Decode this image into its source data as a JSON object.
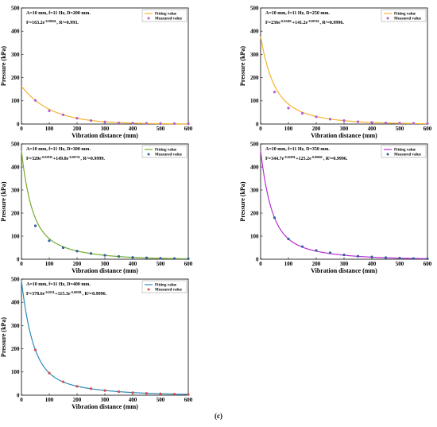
{
  "figure_label": "(c)",
  "chart_data": [
    {
      "type": "line",
      "xlabel": "Vibration distance (mm)",
      "ylabel": "Pressure (kPa)",
      "xlim": [
        0,
        600
      ],
      "ylim": [
        0,
        500
      ],
      "xticks": [
        0,
        100,
        200,
        300,
        400,
        500,
        600
      ],
      "yticks": [
        0,
        100,
        200,
        300,
        400,
        500
      ],
      "annotation_line1": "A=10 mm, f=11 Hz, D=200 mm.",
      "annotation_line2": "F=163.2e^-0.0094L, R²=0.993.",
      "legend": [
        "Fitting value",
        "Measured value"
      ],
      "legend_position": "top-right",
      "colors": {
        "fit": "#f0b530",
        "measured": "#b45ad6"
      },
      "fit": {
        "a": 163.2,
        "b": 0.0094,
        "c": 0,
        "d": 0
      },
      "series": [
        {
          "name": "Measured value",
          "x": [
            50,
            100,
            150,
            200,
            250,
            300,
            350,
            400,
            450,
            500,
            550,
            600
          ],
          "values": [
            102,
            57,
            40,
            25,
            15,
            9,
            5,
            4,
            3,
            2,
            2,
            1
          ]
        }
      ]
    },
    {
      "type": "line",
      "xlabel": "Vibration distance (mm)",
      "ylabel": "Pressure (kPa)",
      "xlim": [
        0,
        600
      ],
      "ylim": [
        0,
        500
      ],
      "xticks": [
        0,
        100,
        200,
        300,
        400,
        500,
        600
      ],
      "yticks": [
        0,
        100,
        200,
        300,
        400,
        500
      ],
      "annotation_line1": "A=10 mm, f=11 Hz, D=250 mm.",
      "annotation_line2": "F=236e^-0.0246L+141.2e^-0.0076L, R²=0.9996.",
      "legend": [
        "Fitting value",
        "Measured value"
      ],
      "legend_position": "top-right",
      "colors": {
        "fit": "#f0b530",
        "measured": "#b45ad6"
      },
      "fit": {
        "a": 236,
        "b": 0.0246,
        "c": 141.2,
        "d": 0.0076
      },
      "series": [
        {
          "name": "Measured value",
          "x": [
            50,
            100,
            150,
            200,
            250,
            300,
            350,
            400,
            450,
            500,
            550,
            600
          ],
          "values": [
            138,
            69,
            46,
            31,
            21,
            15,
            10,
            7,
            5,
            4,
            3,
            2
          ]
        }
      ]
    },
    {
      "type": "line",
      "xlabel": "Vibration distance (mm)",
      "ylabel": "Pressure (kPa)",
      "xlim": [
        0,
        600
      ],
      "ylim": [
        0,
        500
      ],
      "xticks": [
        0,
        100,
        200,
        300,
        400,
        500,
        600
      ],
      "yticks": [
        0,
        100,
        200,
        300,
        400,
        500
      ],
      "annotation_line1": "A=10 mm, f=11 Hz, D=300 mm.",
      "annotation_line2": "F=320e^-0.0293L+149.8e^-0.0073L, R²=0.9999.",
      "legend": [
        "Fitting value",
        "Measured value"
      ],
      "legend_position": "top-right",
      "colors": {
        "fit": "#76ab2f",
        "measured": "#2e5fa0"
      },
      "fit": {
        "a": 320,
        "b": 0.0293,
        "c": 149.8,
        "d": 0.0073
      },
      "series": [
        {
          "name": "Measured value",
          "x": [
            50,
            100,
            150,
            200,
            250,
            300,
            350,
            400,
            450,
            500,
            550,
            600
          ],
          "values": [
            145,
            80,
            50,
            35,
            25,
            17,
            12,
            8,
            6,
            4,
            3,
            2
          ]
        }
      ]
    },
    {
      "type": "line",
      "xlabel": "Vibration distance (mm)",
      "ylabel": "Pressure (kPa)",
      "xlim": [
        0,
        600
      ],
      "ylim": [
        0,
        500
      ],
      "xticks": [
        0,
        100,
        200,
        300,
        400,
        500,
        600
      ],
      "yticks": [
        0,
        100,
        200,
        300,
        400,
        500
      ],
      "annotation_line1": "A=10 mm, f=11 Hz, D=350 mm.",
      "annotation_line2": "F=344.7e^-0.0269L+125.2e^-0.0066L, R²=0.9996.",
      "legend": [
        "Fitting value",
        "Measured value"
      ],
      "legend_position": "top-right",
      "colors": {
        "fit": "#b62fd0",
        "measured": "#2e5fa0"
      },
      "fit": {
        "a": 344.7,
        "b": 0.0269,
        "c": 125.2,
        "d": 0.0066
      },
      "series": [
        {
          "name": "Measured value",
          "x": [
            50,
            100,
            150,
            200,
            250,
            300,
            350,
            400,
            450,
            500,
            550,
            600
          ],
          "values": [
            180,
            88,
            55,
            38,
            28,
            19,
            13,
            10,
            7,
            5,
            3,
            2
          ]
        }
      ]
    },
    {
      "type": "line",
      "xlabel": "Vibration distance (mm)",
      "ylabel": "Pressure (kPa)",
      "xlim": [
        0,
        600
      ],
      "ylim": [
        0,
        500
      ],
      "xticks": [
        0,
        100,
        200,
        300,
        400,
        500,
        600
      ],
      "yticks": [
        0,
        100,
        200,
        300,
        400,
        500
      ],
      "annotation_line1": "A=10 mm, f=11 Hz, D=400 mm.",
      "annotation_line2": "F=378.6e^-0.025L+115.3e^-0.0058L, R²=0.9996.",
      "legend": [
        "Fitting value",
        "Measured value"
      ],
      "legend_position": "top-right",
      "colors": {
        "fit": "#2e8ab8",
        "measured": "#d84a4a"
      },
      "fit": {
        "a": 378.6,
        "b": 0.025,
        "c": 115.3,
        "d": 0.0058
      },
      "series": [
        {
          "name": "Measured value",
          "x": [
            50,
            100,
            150,
            200,
            250,
            300,
            350,
            400,
            450,
            500,
            550,
            600
          ],
          "values": [
            195,
            95,
            58,
            38,
            28,
            20,
            15,
            11,
            8,
            6,
            5,
            3
          ]
        }
      ]
    }
  ]
}
